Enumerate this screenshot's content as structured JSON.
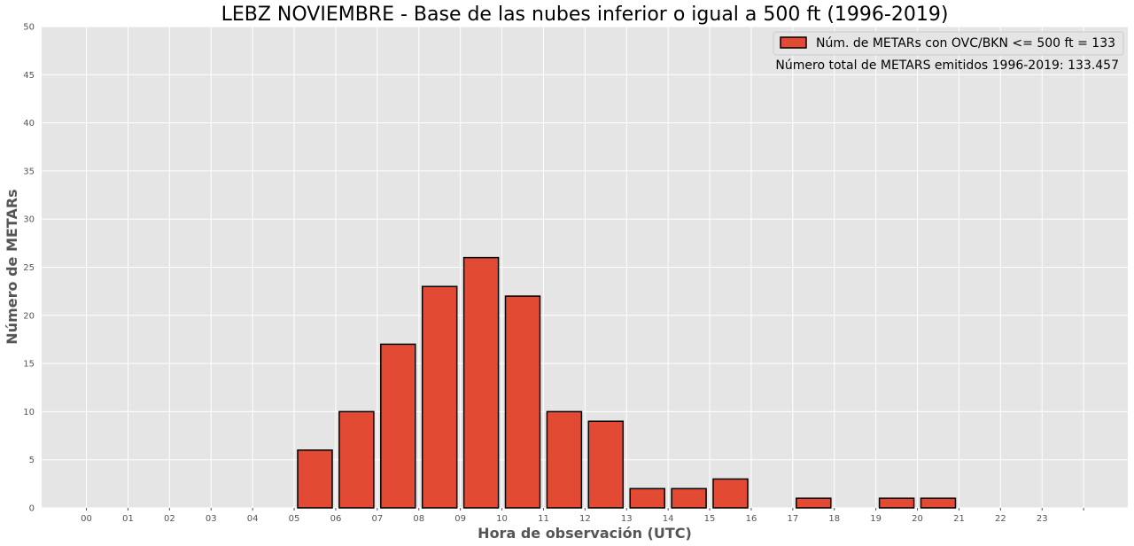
{
  "chart_data": {
    "type": "bar",
    "title": "LEBZ NOVIEMBRE - Base de las nubes inferior o igual a 500 ft (1996-2019)",
    "xlabel": "Hora de observación (UTC)",
    "ylabel": "Número de METARs",
    "categories": [
      "00",
      "01",
      "02",
      "03",
      "04",
      "05",
      "06",
      "07",
      "08",
      "09",
      "10",
      "11",
      "12",
      "13",
      "14",
      "15",
      "16",
      "17",
      "18",
      "19",
      "20",
      "21",
      "22",
      "23"
    ],
    "values": [
      0,
      0,
      0,
      0,
      0,
      6,
      10,
      17,
      23,
      26,
      22,
      10,
      9,
      2,
      2,
      3,
      0,
      1,
      0,
      1,
      1,
      0,
      0,
      0
    ],
    "ylim": [
      0,
      50
    ],
    "yticks": [
      0,
      5,
      10,
      15,
      20,
      25,
      30,
      35,
      40,
      45,
      50
    ],
    "grid": true,
    "legend": {
      "position": "top-right",
      "entries": [
        "Núm. de METARs con OVC/BKN <= 500 ft = 133"
      ]
    },
    "annotation": "Número total de METARS emitidos 1996-2019:  133.457",
    "colors": {
      "bar_fill": "#E24A33",
      "bar_edge": "#000000",
      "plot_bg": "#E5E5E5",
      "grid": "#FFFFFF"
    }
  }
}
